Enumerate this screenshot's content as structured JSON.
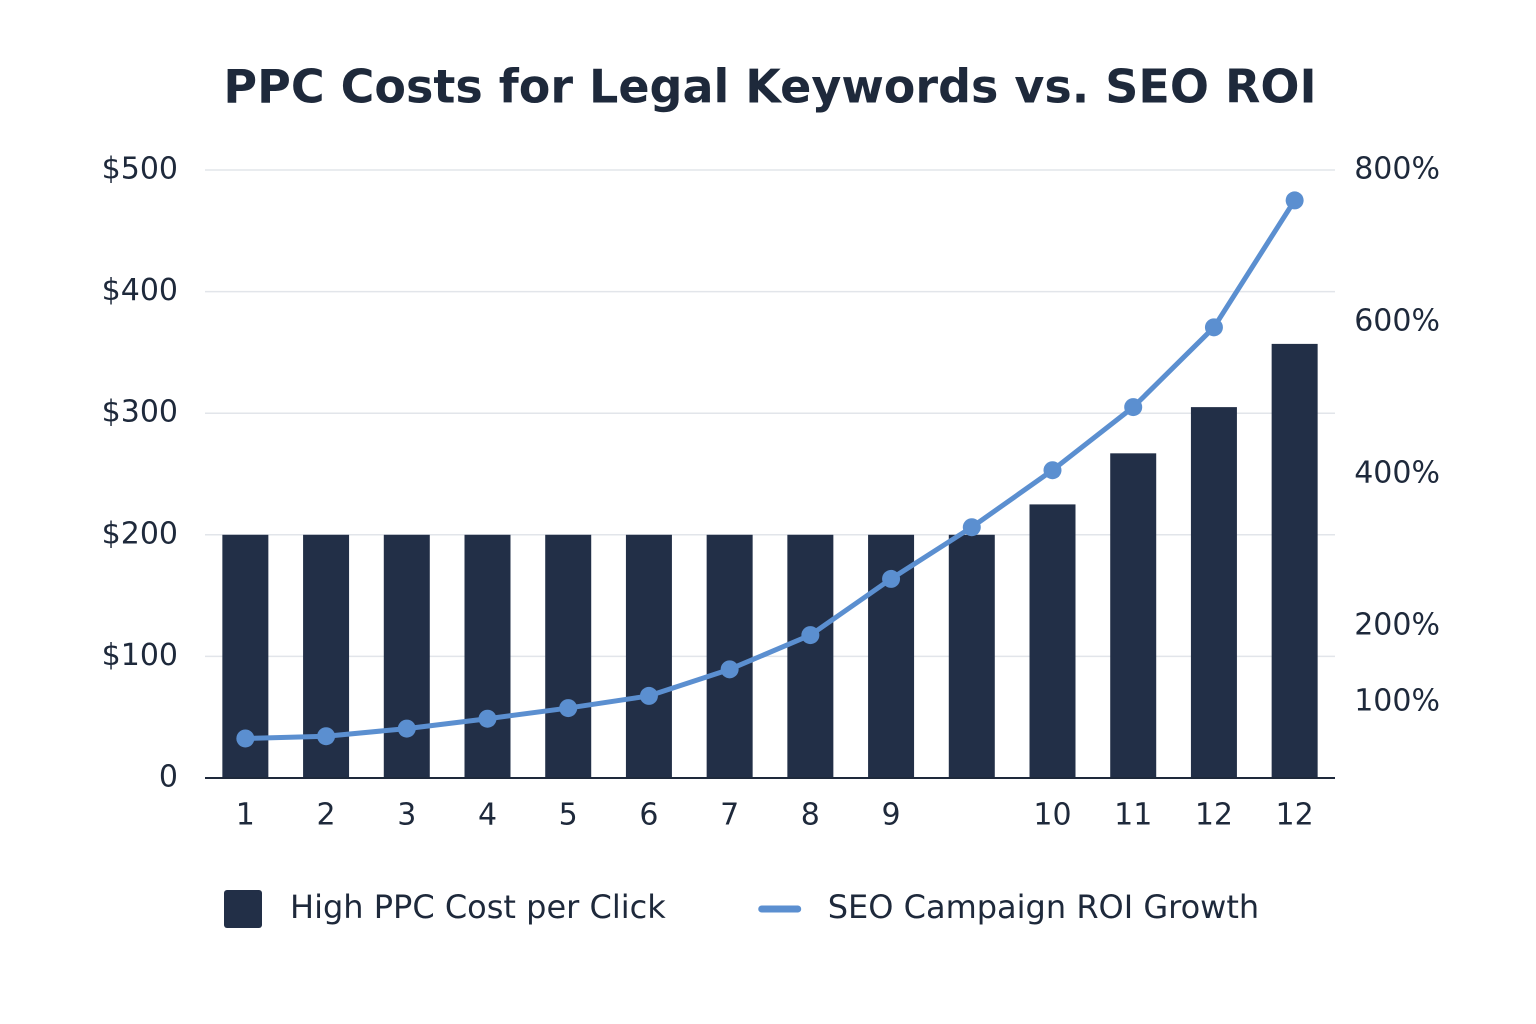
{
  "chart_data": {
    "type": "bar_line",
    "title": "PPC Costs for Legal Keywords vs. SEO ROI",
    "categories": [
      "1",
      "2",
      "3",
      "4",
      "5",
      "6",
      "7",
      "8",
      "9",
      null,
      "10",
      "11",
      "12",
      "12"
    ],
    "series": [
      {
        "name": "High PPC Cost per Click",
        "type": "bar",
        "color": "#222f47",
        "values": [
          200,
          200,
          200,
          200,
          200,
          200,
          200,
          200,
          200,
          200,
          225,
          267,
          305,
          357
        ]
      },
      {
        "name": "SEO Campaign ROI Growth",
        "type": "line",
        "color": "#5b8fd0",
        "axis": "y2",
        "values": [
          52,
          55,
          65,
          78,
          92,
          108,
          143,
          188,
          262,
          330,
          405,
          488,
          593,
          760
        ]
      }
    ],
    "ylim": [
      0,
      500
    ],
    "yticks": [
      0,
      {
        "value": 100,
        "label": "$100"
      },
      {
        "value": 200,
        "label": "$200"
      },
      {
        "value": 300,
        "label": "$300"
      },
      {
        "value": 400,
        "label": "$400"
      },
      {
        "value": 500,
        "label": "$500"
      }
    ],
    "y2lim": [
      0,
      800
    ],
    "y2ticks": [
      {
        "value": 100,
        "label": "100%"
      },
      {
        "value": 200,
        "label": "200%"
      },
      {
        "value": 400,
        "label": "400%"
      },
      {
        "value": 600,
        "label": "600%"
      },
      {
        "value": 800,
        "label": "800%"
      }
    ],
    "grid": true,
    "legend": "bottom"
  }
}
